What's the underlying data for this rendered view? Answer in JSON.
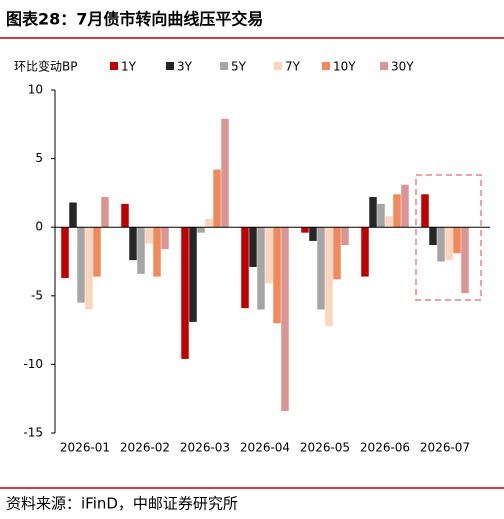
{
  "chart_data": {
    "type": "bar",
    "title": "图表28：7月债市转向曲线压平交易",
    "y_label": "环比变动BP",
    "source": "资料来源：iFinD，中邮证券研究所",
    "categories": [
      "2026-01",
      "2026-02",
      "2026-03",
      "2026-04",
      "2026-05",
      "2026-06",
      "2026-07"
    ],
    "series": [
      {
        "name": "1Y",
        "color": "#c00000",
        "values": [
          -3.7,
          1.7,
          -9.6,
          -5.9,
          -0.4,
          -3.6,
          2.4
        ]
      },
      {
        "name": "3Y",
        "color": "#262626",
        "values": [
          1.8,
          -2.4,
          -6.9,
          -2.9,
          -1.0,
          2.2,
          -1.3
        ]
      },
      {
        "name": "5Y",
        "color": "#a6a6a6",
        "values": [
          -5.5,
          -3.4,
          -0.4,
          -6.0,
          -6.0,
          1.7,
          -2.5
        ]
      },
      {
        "name": "7Y",
        "color": "#fbd4bd",
        "values": [
          -6.0,
          -1.2,
          0.6,
          -4.1,
          -7.2,
          0.8,
          -2.4
        ]
      },
      {
        "name": "10Y",
        "color": "#f08a5d",
        "values": [
          -3.6,
          -3.6,
          4.2,
          -7.0,
          -3.8,
          2.4,
          -1.9
        ]
      },
      {
        "name": "30Y",
        "color": "#d99694",
        "values": [
          2.2,
          -1.6,
          7.9,
          -13.4,
          -1.3,
          3.1,
          -4.8
        ]
      }
    ],
    "ylim": [
      -15,
      10
    ],
    "yticks": [
      -15,
      -10,
      -5,
      0,
      5,
      10
    ],
    "grid": false
  }
}
